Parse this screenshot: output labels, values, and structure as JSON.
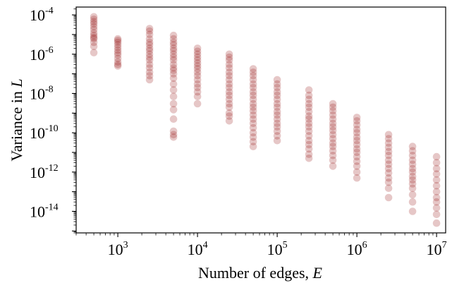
{
  "chart_data": {
    "type": "scatter",
    "xlabel": "Number of edges,",
    "xlabel_var": "E",
    "ylabel": "Variance in",
    "ylabel_var": "L",
    "xscale": "log",
    "yscale": "log",
    "xlim": [
      300,
      13000000
    ],
    "ylim": [
      8e-16,
      0.00025
    ],
    "x_ticks": [
      {
        "value": 1000,
        "base": "10",
        "exp": "3"
      },
      {
        "value": 10000,
        "base": "10",
        "exp": "4"
      },
      {
        "value": 100000,
        "base": "10",
        "exp": "5"
      },
      {
        "value": 1000000,
        "base": "10",
        "exp": "6"
      },
      {
        "value": 10000000,
        "base": "10",
        "exp": "7"
      }
    ],
    "y_ticks": [
      {
        "value": 0.0001,
        "base": "10",
        "exp": "-4"
      },
      {
        "value": 1e-06,
        "base": "10",
        "exp": "-6"
      },
      {
        "value": 1e-08,
        "base": "10",
        "exp": "-8"
      },
      {
        "value": 1e-10,
        "base": "10",
        "exp": "-10"
      },
      {
        "value": 1e-12,
        "base": "10",
        "exp": "-12"
      },
      {
        "value": 1e-14,
        "base": "10",
        "exp": "-14"
      }
    ],
    "marker_color": "#8b0000",
    "marker_opacity": 0.22,
    "grid": false,
    "groups": [
      {
        "x": 500,
        "y": [
          8e-05,
          6e-05,
          4.5e-05,
          3.5e-05,
          2.5e-05,
          1.8e-05,
          1.2e-05,
          9e-06,
          7e-06,
          6e-06,
          4e-06,
          2.5e-06,
          1.2e-06
        ]
      },
      {
        "x": 1000,
        "y": [
          6e-06,
          5e-06,
          4e-06,
          3e-06,
          2.2e-06,
          1.6e-06,
          1.2e-06,
          9e-07,
          6e-07,
          4e-07,
          3e-07,
          2.5e-07
        ]
      },
      {
        "x": 2500,
        "y": [
          2e-05,
          1.5e-05,
          1e-05,
          6e-06,
          4e-06,
          3e-06,
          2e-06,
          1.5e-06,
          1e-06,
          7e-07,
          5e-07,
          3e-07,
          2e-07,
          1.2e-07,
          8e-08,
          5e-08
        ]
      },
      {
        "x": 5000,
        "y": [
          9e-06,
          6e-06,
          4e-06,
          3e-06,
          2e-06,
          1.5e-06,
          1e-06,
          7e-07,
          5e-07,
          3e-07,
          2e-07,
          1.5e-07,
          1e-07,
          6e-08,
          3e-08,
          1.5e-08,
          7e-09,
          3e-09,
          1.5e-09,
          5e-10,
          1.2e-10,
          8e-11,
          6e-11
        ]
      },
      {
        "x": 10000,
        "y": [
          2e-06,
          1.4e-06,
          1e-06,
          7e-07,
          5e-07,
          3.5e-07,
          2.5e-07,
          1.8e-07,
          1.2e-07,
          8e-08,
          5e-08,
          3e-08,
          2e-08,
          1.2e-08,
          7e-09,
          3e-09
        ]
      },
      {
        "x": 25000,
        "y": [
          1e-06,
          7e-07,
          5e-07,
          3e-07,
          2e-07,
          1.2e-07,
          8e-08,
          5e-08,
          3e-08,
          2e-08,
          1.2e-08,
          8e-09,
          5e-09,
          3e-09,
          2e-09,
          1e-09,
          7e-10,
          4e-10
        ]
      },
      {
        "x": 50000,
        "y": [
          1.8e-07,
          1.2e-07,
          8e-08,
          5e-08,
          3e-08,
          2e-08,
          1.2e-08,
          8e-09,
          5e-09,
          3e-09,
          2e-09,
          1.3e-09,
          8e-10,
          5e-10,
          3e-10,
          1.8e-10,
          1e-10,
          6e-11,
          3.5e-11,
          2e-11
        ]
      },
      {
        "x": 100000,
        "y": [
          5e-08,
          3e-08,
          2e-08,
          1.2e-08,
          8e-09,
          5e-09,
          3e-09,
          2e-09,
          1.2e-09,
          8e-10,
          5e-10,
          3e-10,
          2e-10,
          1.2e-10,
          7e-11,
          4e-11
        ]
      },
      {
        "x": 250000,
        "y": [
          1.5e-08,
          8e-09,
          5e-09,
          3e-09,
          2e-09,
          1.2e-09,
          7e-10,
          5e-10,
          3e-10,
          2e-10,
          1.2e-10,
          7e-11,
          4e-11,
          2.5e-11,
          1.5e-11,
          8e-12,
          5e-12
        ]
      },
      {
        "x": 500000,
        "y": [
          3e-09,
          2e-09,
          1.3e-09,
          8e-10,
          5e-10,
          3e-10,
          2e-10,
          1.3e-10,
          8e-11,
          5e-11,
          3e-11,
          2e-11,
          1.2e-11,
          7e-12,
          4e-12,
          2e-12
        ]
      },
      {
        "x": 1000000,
        "y": [
          6e-10,
          4e-10,
          2.5e-10,
          1.5e-10,
          1e-10,
          6e-11,
          4e-11,
          2.5e-11,
          1.5e-11,
          1e-11,
          6e-12,
          3.5e-12,
          2e-12,
          1e-12,
          5e-13
        ]
      },
      {
        "x": 2500000,
        "y": [
          8e-11,
          5e-11,
          3e-11,
          1.8e-11,
          1.1e-11,
          7e-12,
          4e-12,
          2.5e-12,
          1.5e-12,
          9e-13,
          5e-13,
          3e-13,
          1.5e-13,
          5e-14
        ]
      },
      {
        "x": 5000000,
        "y": [
          2e-11,
          1.2e-11,
          7e-12,
          4e-12,
          2.5e-12,
          1.5e-12,
          1e-12,
          6e-13,
          4e-13,
          2.5e-13,
          1.5e-13,
          7e-14,
          3e-14,
          1e-14
        ]
      },
      {
        "x": 10000000,
        "y": [
          6e-12,
          3e-12,
          1.5e-12,
          8e-13,
          4e-13,
          2e-13,
          1e-13,
          5e-14,
          3e-14,
          1.5e-14,
          7e-15,
          2.5e-15
        ]
      }
    ]
  }
}
